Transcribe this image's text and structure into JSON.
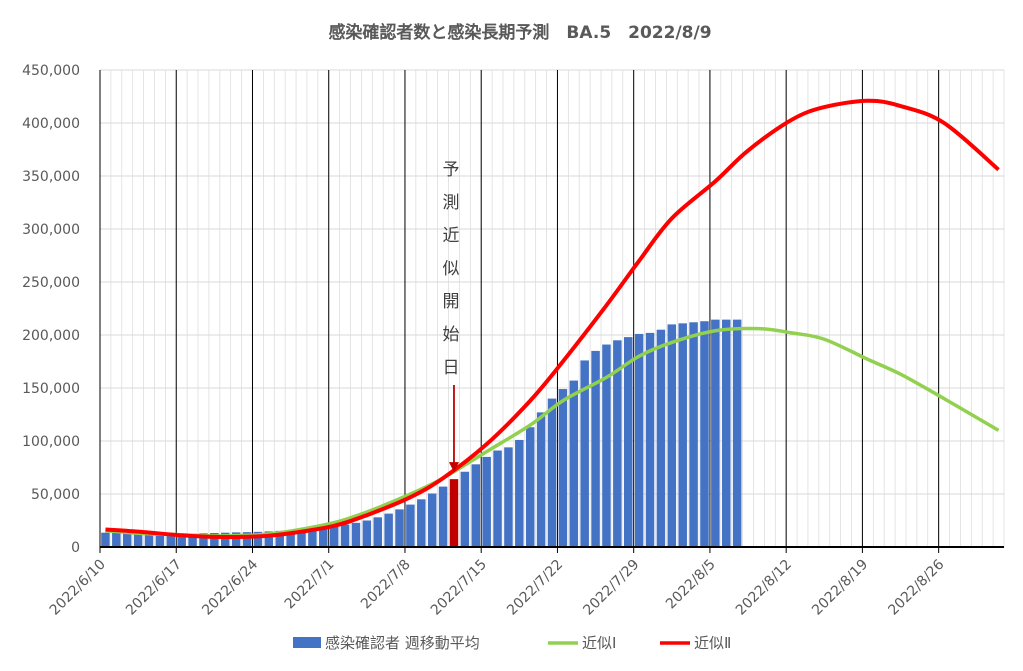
{
  "chart_data": {
    "type": "bar",
    "title": "感染確認者数と感染長期予測　BA.5　2022/8/9",
    "xlabel": "",
    "ylabel": "",
    "x_start": "2022/6/10",
    "x_end": "2022/8/31",
    "ylim": [
      0,
      450000
    ],
    "y_ticks": [
      0,
      50000,
      100000,
      150000,
      200000,
      250000,
      300000,
      350000,
      400000,
      450000
    ],
    "y_tick_labels": [
      "0",
      "50,000",
      "100,000",
      "150,000",
      "200,000",
      "250,000",
      "300,000",
      "350,000",
      "400,000",
      "450,000"
    ],
    "x_tick_labels": [
      "2022/6/10",
      "2022/6/17",
      "2022/6/24",
      "2022/7/1",
      "2022/7/8",
      "2022/7/15",
      "2022/7/22",
      "2022/7/29",
      "2022/8/5",
      "2022/8/12",
      "2022/8/19",
      "2022/8/26"
    ],
    "grid": true,
    "legend_position": "bottom",
    "colors": {
      "bars": "#4472C4",
      "highlight_bar": "#C00000",
      "approx1": "#92D050",
      "approx2": "#FF0000",
      "arrow": "#C00000",
      "axis": "#000000",
      "grid_major": "#000000",
      "grid_minor": "#D9D9D9"
    },
    "series": [
      {
        "name": "感染確認者 週移動平均",
        "type": "bar",
        "highlight_date": "2022/7/12",
        "points": [
          [
            "2022/6/10",
            13500
          ],
          [
            "2022/6/11",
            13200
          ],
          [
            "2022/6/12",
            12900
          ],
          [
            "2022/6/13",
            12600
          ],
          [
            "2022/6/14",
            12300
          ],
          [
            "2022/6/15",
            12100
          ],
          [
            "2022/6/16",
            12200
          ],
          [
            "2022/6/17",
            12500
          ],
          [
            "2022/6/18",
            12700
          ],
          [
            "2022/6/19",
            12900
          ],
          [
            "2022/6/20",
            13200
          ],
          [
            "2022/6/21",
            13500
          ],
          [
            "2022/6/22",
            13800
          ],
          [
            "2022/6/23",
            14000
          ],
          [
            "2022/6/24",
            14300
          ],
          [
            "2022/6/25",
            14700
          ],
          [
            "2022/6/26",
            15200
          ],
          [
            "2022/6/27",
            15800
          ],
          [
            "2022/6/28",
            16600
          ],
          [
            "2022/6/29",
            17500
          ],
          [
            "2022/6/30",
            18600
          ],
          [
            "2022/7/1",
            19800
          ],
          [
            "2022/7/2",
            21200
          ],
          [
            "2022/7/3",
            22800
          ],
          [
            "2022/7/4",
            25000
          ],
          [
            "2022/7/5",
            28000
          ],
          [
            "2022/7/6",
            31500
          ],
          [
            "2022/7/7",
            35500
          ],
          [
            "2022/7/8",
            40000
          ],
          [
            "2022/7/9",
            45000
          ],
          [
            "2022/7/10",
            50500
          ],
          [
            "2022/7/11",
            57000
          ],
          [
            "2022/7/12",
            64000
          ],
          [
            "2022/7/13",
            71000
          ],
          [
            "2022/7/14",
            78000
          ],
          [
            "2022/7/15",
            85000
          ],
          [
            "2022/7/16",
            91000
          ],
          [
            "2022/7/17",
            94000
          ],
          [
            "2022/7/18",
            101000
          ],
          [
            "2022/7/19",
            113000
          ],
          [
            "2022/7/20",
            127000
          ],
          [
            "2022/7/21",
            140000
          ],
          [
            "2022/7/22",
            149000
          ],
          [
            "2022/7/23",
            157000
          ],
          [
            "2022/7/24",
            176000
          ],
          [
            "2022/7/25",
            185000
          ],
          [
            "2022/7/26",
            191000
          ],
          [
            "2022/7/27",
            195000
          ],
          [
            "2022/7/28",
            198000
          ],
          [
            "2022/7/29",
            201000
          ],
          [
            "2022/7/30",
            202000
          ],
          [
            "2022/7/31",
            205000
          ],
          [
            "2022/8/1",
            210000
          ],
          [
            "2022/8/2",
            211000
          ],
          [
            "2022/8/3",
            212000
          ],
          [
            "2022/8/4",
            213000
          ],
          [
            "2022/8/5",
            214500
          ],
          [
            "2022/8/6",
            214500
          ],
          [
            "2022/8/7",
            214500
          ]
        ]
      },
      {
        "name": "近似Ⅰ",
        "type": "line",
        "points": [
          [
            "2022/6/10",
            15500
          ],
          [
            "2022/6/13",
            13000
          ],
          [
            "2022/6/17",
            11500
          ],
          [
            "2022/6/20",
            10500
          ],
          [
            "2022/6/24",
            11500
          ],
          [
            "2022/6/27",
            15000
          ],
          [
            "2022/7/1",
            23000
          ],
          [
            "2022/7/4",
            33000
          ],
          [
            "2022/7/8",
            50000
          ],
          [
            "2022/7/11",
            65000
          ],
          [
            "2022/7/15",
            90000
          ],
          [
            "2022/7/19",
            115000
          ],
          [
            "2022/7/22",
            138000
          ],
          [
            "2022/7/26",
            160000
          ],
          [
            "2022/7/29",
            180000
          ],
          [
            "2022/8/1",
            193000
          ],
          [
            "2022/8/5",
            204000
          ],
          [
            "2022/8/9",
            206000
          ],
          [
            "2022/8/12",
            202000
          ],
          [
            "2022/8/15",
            196000
          ],
          [
            "2022/8/19",
            177000
          ],
          [
            "2022/8/22",
            163000
          ],
          [
            "2022/8/26",
            140000
          ],
          [
            "2022/8/31",
            110000
          ]
        ]
      },
      {
        "name": "近似Ⅱ",
        "type": "line",
        "points": [
          [
            "2022/6/10",
            16500
          ],
          [
            "2022/6/13",
            14500
          ],
          [
            "2022/6/17",
            11000
          ],
          [
            "2022/6/20",
            9500
          ],
          [
            "2022/6/24",
            10000
          ],
          [
            "2022/6/27",
            13000
          ],
          [
            "2022/7/1",
            20000
          ],
          [
            "2022/7/4",
            30000
          ],
          [
            "2022/7/8",
            47000
          ],
          [
            "2022/7/11",
            65000
          ],
          [
            "2022/7/15",
            97000
          ],
          [
            "2022/7/19",
            138000
          ],
          [
            "2022/7/22",
            175000
          ],
          [
            "2022/7/26",
            228000
          ],
          [
            "2022/7/29",
            270000
          ],
          [
            "2022/8/1",
            310000
          ],
          [
            "2022/8/5",
            345000
          ],
          [
            "2022/8/8",
            374000
          ],
          [
            "2022/8/12",
            403000
          ],
          [
            "2022/8/15",
            415000
          ],
          [
            "2022/8/19",
            421000
          ],
          [
            "2022/8/22",
            416000
          ],
          [
            "2022/8/26",
            400000
          ],
          [
            "2022/8/31",
            356000
          ]
        ]
      }
    ],
    "annotation": {
      "text": "予測近似開始日",
      "date": "2022/7/12"
    }
  }
}
